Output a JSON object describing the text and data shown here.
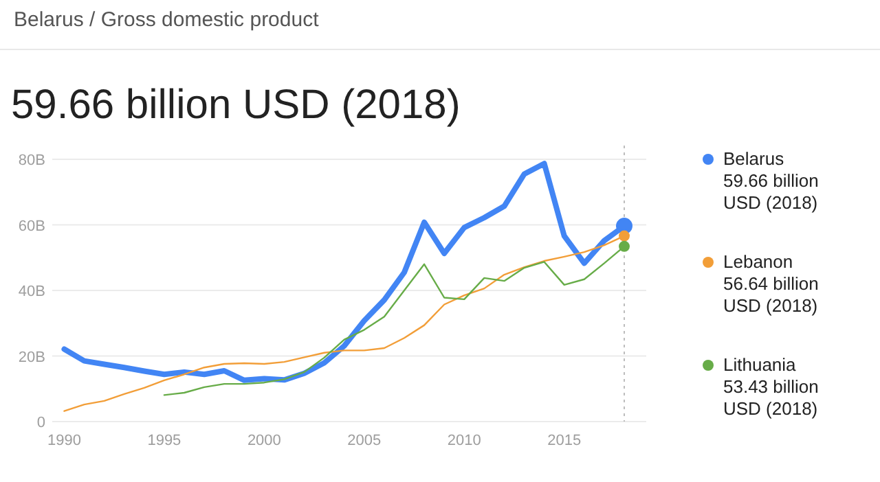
{
  "chart_data": {
    "type": "line",
    "title": "59.66 billion USD (2018)",
    "subtitle": "Belarus / Gross domestic product",
    "x": [
      1990,
      1991,
      1992,
      1993,
      1994,
      1995,
      1996,
      1997,
      1998,
      1999,
      2000,
      2001,
      2002,
      2003,
      2004,
      2005,
      2006,
      2007,
      2008,
      2009,
      2010,
      2011,
      2012,
      2013,
      2014,
      2015,
      2016,
      2017,
      2018
    ],
    "series": [
      {
        "name": "Belarus",
        "color": "#4285f4",
        "values": [
          22.1,
          18.5,
          17.5,
          16.5,
          15.4,
          14.4,
          15.1,
          14.4,
          15.5,
          12.6,
          13.1,
          12.7,
          14.7,
          17.9,
          23.1,
          30.8,
          37.1,
          45.5,
          60.8,
          51.3,
          59.2,
          62.2,
          65.7,
          75.5,
          78.7,
          56.6,
          48.3,
          55.2,
          59.66
        ]
      },
      {
        "name": "Lebanon",
        "color": "#f29e38",
        "values": [
          3.2,
          5.2,
          6.3,
          8.4,
          10.3,
          12.6,
          14.4,
          16.5,
          17.6,
          17.8,
          17.6,
          18.2,
          19.6,
          21.0,
          21.7,
          21.7,
          22.4,
          25.5,
          29.4,
          35.7,
          38.5,
          40.6,
          44.8,
          47.1,
          49.0,
          50.3,
          51.7,
          53.8,
          56.64
        ]
      },
      {
        "name": "Lithuania",
        "color": "#67ac48",
        "values": [
          null,
          null,
          null,
          null,
          null,
          8.1,
          8.8,
          10.5,
          11.5,
          11.5,
          11.9,
          12.9,
          15.1,
          19.5,
          25.0,
          28.0,
          32.0,
          40.0,
          48.0,
          37.8,
          37.3,
          43.8,
          42.9,
          46.9,
          48.7,
          41.7,
          43.4,
          48.3,
          53.43
        ]
      }
    ],
    "annotations": [
      "59.66 billion USD (2018)",
      "56.64 billion USD (2018)",
      "53.43 billion USD (2018)"
    ],
    "xlim": [
      1989.4,
      2019.1
    ],
    "xticks": [
      1990,
      1995,
      2000,
      2005,
      2010,
      2015
    ],
    "ylim": [
      0,
      80
    ],
    "yticks": [
      0,
      {
        "value": 20,
        "label": "20B"
      },
      {
        "value": 40,
        "label": "40B"
      },
      {
        "value": 60,
        "label": "60B"
      },
      {
        "value": 80,
        "label": "80B"
      }
    ],
    "ref_lines": [
      {
        "axis": "x",
        "value": 2018,
        "label": null,
        "color": "#bdbdbd",
        "line_style": "dotted"
      }
    ],
    "grid": "y",
    "legend": "right",
    "marker": "none",
    "line_style": "solid"
  }
}
